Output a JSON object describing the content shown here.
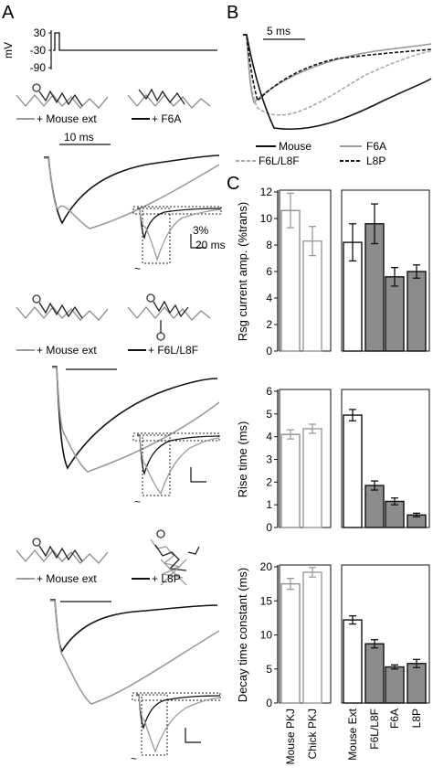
{
  "panels": {
    "A": {
      "letter": "A",
      "voltage": {
        "unit": "mV",
        "ticks": [
          "30",
          "-30",
          "-90"
        ]
      },
      "rows": [
        {
          "legend_ctrl": "+ Mouse ext",
          "legend_mut": "+ F6A",
          "scalebar_time": "10 ms",
          "inset_scale_pct": "3%",
          "inset_scale_time": "20 ms"
        },
        {
          "legend_ctrl": "+ Mouse ext",
          "legend_mut": "+ F6L/L8F"
        },
        {
          "legend_ctrl": "+ Mouse ext",
          "legend_mut": "+ L8P"
        }
      ]
    },
    "B": {
      "letter": "B",
      "scalebar_time": "5 ms",
      "legend": [
        "Mouse",
        "F6A",
        "F6L/L8F",
        "L8P"
      ]
    },
    "C": {
      "letter": "C"
    }
  },
  "colors": {
    "mouse": "#111111",
    "f6a": "#a0a0a0",
    "f6l": "#a8a8a8",
    "l8p": "#111111",
    "chick_bar": "#9a9a9a",
    "mut_fill": "#8c8c8c"
  },
  "chart_data": [
    {
      "type": "bar",
      "ylabel": "Rsg current amp. (%trans)",
      "ylim": [
        0,
        12
      ],
      "yticks": [
        "0",
        "2",
        "4",
        "6",
        "8",
        "10",
        "12"
      ],
      "categories": [
        "Mouse PKJ",
        "Chick PKJ",
        "Mouse Ext",
        "F6L/L8F",
        "F6A",
        "L8P"
      ],
      "values": [
        10.6,
        8.3,
        8.2,
        9.6,
        5.6,
        6.0
      ],
      "errors": [
        1.3,
        1.1,
        1.4,
        1.5,
        0.7,
        0.5
      ]
    },
    {
      "type": "bar",
      "ylabel": "Rise time (ms)",
      "ylim": [
        0,
        6
      ],
      "yticks": [
        "0",
        "1",
        "2",
        "3",
        "4",
        "5",
        "6"
      ],
      "categories": [
        "Mouse PKJ",
        "Chick PKJ",
        "Mouse Ext",
        "F6L/L8F",
        "F6A",
        "L8P"
      ],
      "values": [
        4.1,
        4.35,
        4.95,
        1.85,
        1.15,
        0.55
      ],
      "errors": [
        0.2,
        0.2,
        0.25,
        0.2,
        0.15,
        0.08
      ]
    },
    {
      "type": "bar",
      "ylabel": "Decay time constant (ms)",
      "ylim": [
        0,
        20
      ],
      "yticks": [
        "0",
        "5",
        "10",
        "15",
        "20"
      ],
      "categories": [
        "Mouse PKJ",
        "Chick PKJ",
        "Mouse Ext",
        "F6L/L8F",
        "F6A",
        "L8P"
      ],
      "values": [
        17.5,
        19.2,
        12.2,
        8.7,
        5.3,
        5.8
      ],
      "errors": [
        0.8,
        0.7,
        0.6,
        0.6,
        0.3,
        0.6
      ]
    }
  ]
}
